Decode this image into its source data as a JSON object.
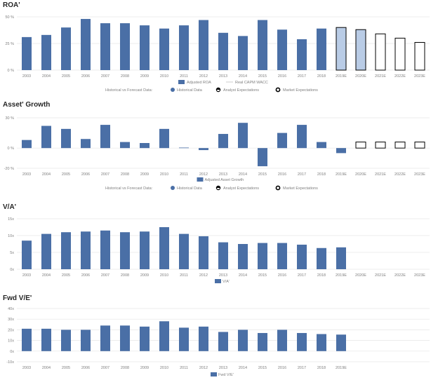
{
  "colors": {
    "historical": "#4a6fa6",
    "analyst": "#b9cce6",
    "grid": "#e6e6e6",
    "axis_text": "#7f7f7f",
    "outline": "#000000"
  },
  "legend_labels": {
    "forecast_title": "Historical vs Forecast Data:",
    "historical": "Historical Data",
    "analyst": "Analyst Expectations",
    "market": "Market Expectations"
  },
  "chart_data": [
    {
      "type": "bar",
      "title": "ROA'",
      "series_name": "Adjusted ROA",
      "secondary_series_name": "Real CAPM WACC",
      "has_forecast_legend": true,
      "ylim": [
        0,
        50
      ],
      "yticks": [
        0,
        25,
        50
      ],
      "ytick_labels": [
        "0 %",
        "25 %",
        "50 %"
      ],
      "categories": [
        "2003",
        "2004",
        "2005",
        "2006",
        "2007",
        "2008",
        "2009",
        "2010",
        "2011",
        "2012",
        "2013",
        "2014",
        "2015",
        "2016",
        "2017",
        "2018",
        "2019E",
        "2020E",
        "2021E",
        "2022E",
        "2023E"
      ],
      "values": [
        31,
        33,
        40,
        48,
        44,
        44,
        42,
        39,
        42,
        47,
        35,
        32,
        47,
        38,
        29,
        39,
        40,
        38,
        34,
        30,
        26
      ],
      "styles": [
        "h",
        "h",
        "h",
        "h",
        "h",
        "h",
        "h",
        "h",
        "h",
        "h",
        "h",
        "h",
        "h",
        "h",
        "h",
        "h",
        "a",
        "a",
        "m",
        "m",
        "m"
      ]
    },
    {
      "type": "bar",
      "title": "Asset' Growth",
      "series_name": "Adjusted Asset Growth",
      "has_forecast_legend": true,
      "ylim": [
        -20,
        30
      ],
      "yticks": [
        -20,
        0,
        30
      ],
      "ytick_labels": [
        "-20 %",
        "0 %",
        "30 %"
      ],
      "categories": [
        "2003",
        "2004",
        "2005",
        "2006",
        "2007",
        "2008",
        "2009",
        "2010",
        "2011",
        "2012",
        "2013",
        "2014",
        "2015",
        "2016",
        "2017",
        "2018",
        "2019E",
        "2020E",
        "2021E",
        "2022E",
        "2023E"
      ],
      "values": [
        8,
        22,
        19,
        9,
        23,
        6,
        5,
        19,
        0.5,
        -2,
        14,
        25,
        -18,
        15,
        23,
        6,
        -5,
        6,
        6,
        6,
        6
      ],
      "styles": [
        "h",
        "h",
        "h",
        "h",
        "h",
        "h",
        "h",
        "h",
        "h",
        "h",
        "h",
        "h",
        "h",
        "h",
        "h",
        "h",
        "h",
        "m",
        "m",
        "m",
        "m"
      ]
    },
    {
      "type": "bar",
      "title": "V/A'",
      "series_name": "V/A'",
      "has_forecast_legend": false,
      "ylim": [
        0,
        15
      ],
      "yticks": [
        0,
        5,
        10,
        15
      ],
      "ytick_labels": [
        "0x",
        "5x",
        "10x",
        "15x"
      ],
      "categories": [
        "2003",
        "2004",
        "2005",
        "2006",
        "2007",
        "2008",
        "2009",
        "2010",
        "2011",
        "2012",
        "2013",
        "2014",
        "2015",
        "2016",
        "2017",
        "2018",
        "2019E",
        "2020E",
        "2021E",
        "2022E",
        "2023E"
      ],
      "values": [
        8.5,
        10.5,
        11,
        11.2,
        11.5,
        11,
        11.2,
        12.5,
        10.5,
        9.8,
        8,
        7.5,
        7.8,
        7.8,
        7.3,
        6.3,
        6.5,
        null,
        null,
        null,
        null
      ],
      "styles": [
        "h",
        "h",
        "h",
        "h",
        "h",
        "h",
        "h",
        "h",
        "h",
        "h",
        "h",
        "h",
        "h",
        "h",
        "h",
        "h",
        "h",
        "",
        "",
        "",
        ""
      ]
    },
    {
      "type": "bar",
      "title": "Fwd V/E'",
      "series_name": "Fwd V/E'",
      "has_forecast_legend": false,
      "ylim": [
        -10,
        40
      ],
      "yticks": [
        -10,
        0,
        10,
        20,
        30,
        40
      ],
      "ytick_labels": [
        "-10x",
        "0x",
        "10x",
        "20x",
        "30x",
        "40x"
      ],
      "categories": [
        "2003",
        "2004",
        "2005",
        "2006",
        "2007",
        "2008",
        "2009",
        "2010",
        "2011",
        "2012",
        "2013",
        "2014",
        "2015",
        "2016",
        "2017",
        "2018",
        "2019E"
      ],
      "values": [
        21,
        21,
        20,
        20,
        24,
        24,
        23,
        28,
        22,
        23,
        18,
        20,
        17,
        20,
        17,
        16,
        15.5
      ],
      "styles": [
        "h",
        "h",
        "h",
        "h",
        "h",
        "h",
        "h",
        "h",
        "h",
        "h",
        "h",
        "h",
        "h",
        "h",
        "h",
        "h",
        "h"
      ]
    }
  ]
}
